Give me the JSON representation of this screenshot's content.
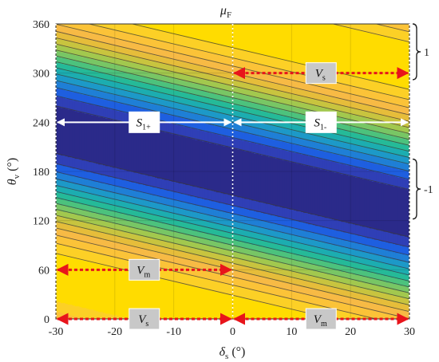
{
  "chart_data": {
    "type": "heatmap",
    "title": {
      "main": "μ",
      "sub": "F"
    },
    "xlabel": {
      "main": "δ",
      "sub": "s",
      "unit": " (°)"
    },
    "ylabel": {
      "main": "θ",
      "sub": "v",
      "unit": " (°)"
    },
    "xlim": [
      -30,
      30
    ],
    "ylim": [
      0,
      360
    ],
    "xticks": [
      "-30",
      "-20",
      "-10",
      "0",
      "10",
      "20",
      "30"
    ],
    "yticks": [
      "0",
      "60",
      "120",
      "180",
      "240",
      "300",
      "360"
    ],
    "grid": true,
    "contour_levels": 16,
    "value_range": [
      -1,
      1
    ],
    "field": "mu_F = cos(theta_v + 1.7*delta_s)",
    "colormap": [
      "#2b2a8a",
      "#2f3fb6",
      "#1e5fe0",
      "#1f7fd6",
      "#1d99c8",
      "#1cadb0",
      "#25ba98",
      "#4cc27d",
      "#78c665",
      "#a2c84e",
      "#c8c43f",
      "#e6bd3a",
      "#f7ba45",
      "#fbc338",
      "#fcd026",
      "#ffdc00"
    ],
    "annotations": {
      "S1plus": {
        "main": "S",
        "sub": "1+",
        "x_range": [
          -30,
          0
        ],
        "y": 240
      },
      "S1minus": {
        "main": "S",
        "sub": "1-",
        "x_range": [
          0,
          30
        ],
        "y": 240
      },
      "Vs_top": {
        "main": "V",
        "sub": "s",
        "x_range": [
          0,
          30
        ],
        "y": 300
      },
      "Vm_mid": {
        "main": "V",
        "sub": "m",
        "x_range": [
          -30,
          0
        ],
        "y": 60
      },
      "Vs_bottom": {
        "main": "V",
        "sub": "s",
        "x_range": [
          -30,
          0
        ],
        "y": 0
      },
      "Vm_bottom": {
        "main": "V",
        "sub": "m",
        "x_range": [
          0,
          30
        ],
        "y": 0
      }
    },
    "brackets": [
      {
        "label": "1",
        "y_range": [
          292,
          360
        ]
      },
      {
        "label": "-1",
        "y_range": [
          122,
          195
        ]
      }
    ]
  },
  "colors": {
    "arrow_white": "#ffffff",
    "arrow_red": "#e8141b",
    "label_box": "#c8c8c8",
    "divider": "#ffffff"
  }
}
